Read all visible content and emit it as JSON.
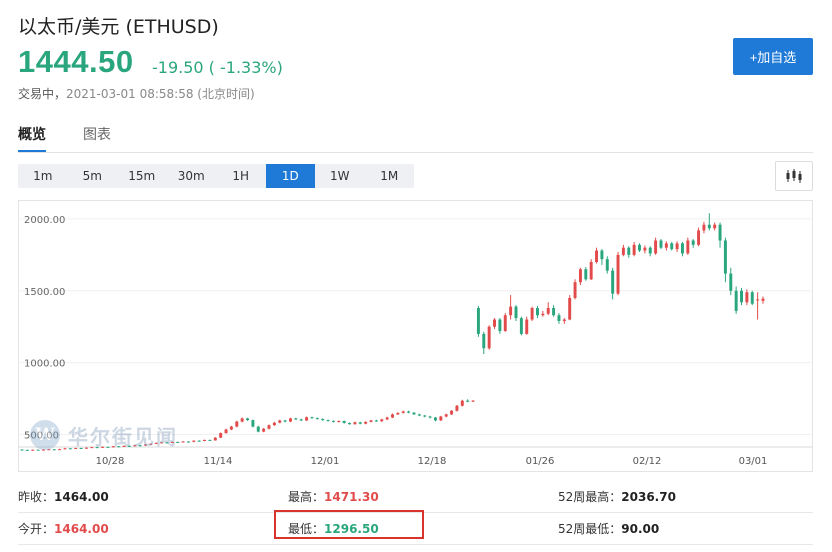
{
  "header": {
    "title": "以太币/美元  (ETHUSD)",
    "price": "1444.50",
    "change": "-19.50 ( -1.33%)",
    "status": "交易中，",
    "timestamp": "2021-03-01 08:58:58 (北京时间)",
    "add_button": "+加自选"
  },
  "tabs": [
    {
      "label": "概览",
      "active": true
    },
    {
      "label": "图表",
      "active": false
    }
  ],
  "periods": [
    {
      "label": "1m",
      "active": false
    },
    {
      "label": "5m",
      "active": false
    },
    {
      "label": "15m",
      "active": false
    },
    {
      "label": "30m",
      "active": false
    },
    {
      "label": "1H",
      "active": false
    },
    {
      "label": "1D",
      "active": true
    },
    {
      "label": "1W",
      "active": false
    },
    {
      "label": "1M",
      "active": false
    }
  ],
  "watermark": "华尔街见闻",
  "colors": {
    "up": "#e24b4b",
    "down": "#2aa67e",
    "accent": "#1e7ad6"
  },
  "icons": {
    "chart_type": "candlestick-icon"
  },
  "chart_data": {
    "type": "candlestick",
    "ylim": [
      420,
      2090
    ],
    "yticks": [
      {
        "v": 2000,
        "label": "2000.00"
      },
      {
        "v": 1500,
        "label": "1500.00"
      },
      {
        "v": 1000,
        "label": "1000.00"
      },
      {
        "v": 500,
        "label": "500.00"
      }
    ],
    "xticks": [
      "10/28",
      "11/14",
      "12/01",
      "12/18",
      "01/26",
      "02/12",
      "03/01"
    ],
    "candles": [
      [
        395,
        393,
        397,
        391
      ],
      [
        393,
        390,
        395,
        388
      ],
      [
        390,
        394,
        396,
        388
      ],
      [
        394,
        392,
        396,
        390
      ],
      [
        392,
        395,
        398,
        390
      ],
      [
        395,
        397,
        399,
        393
      ],
      [
        397,
        394,
        399,
        392
      ],
      [
        394,
        398,
        401,
        392
      ],
      [
        398,
        404,
        407,
        396
      ],
      [
        404,
        401,
        406,
        399
      ],
      [
        401,
        406,
        408,
        399
      ],
      [
        406,
        403,
        408,
        401
      ],
      [
        403,
        408,
        411,
        401
      ],
      [
        408,
        412,
        414,
        406
      ],
      [
        412,
        409,
        414,
        407
      ],
      [
        409,
        414,
        417,
        407
      ],
      [
        414,
        411,
        416,
        409
      ],
      [
        411,
        418,
        421,
        409
      ],
      [
        418,
        415,
        420,
        413
      ],
      [
        415,
        421,
        424,
        413
      ],
      [
        421,
        419,
        424,
        417
      ],
      [
        419,
        425,
        428,
        417
      ],
      [
        425,
        423,
        428,
        420
      ],
      [
        423,
        430,
        433,
        421
      ],
      [
        430,
        436,
        438,
        428
      ],
      [
        436,
        442,
        444,
        433
      ],
      [
        442,
        445,
        447,
        439
      ],
      [
        445,
        442,
        447,
        440
      ],
      [
        442,
        448,
        451,
        440
      ],
      [
        448,
        446,
        451,
        443
      ],
      [
        446,
        451,
        454,
        444
      ],
      [
        451,
        449,
        454,
        447
      ],
      [
        449,
        457,
        460,
        446
      ],
      [
        457,
        455,
        460,
        452
      ],
      [
        455,
        462,
        465,
        453
      ],
      [
        462,
        459,
        465,
        457
      ],
      [
        459,
        478,
        482,
        457
      ],
      [
        478,
        510,
        514,
        475
      ],
      [
        510,
        535,
        540,
        506
      ],
      [
        535,
        555,
        560,
        530
      ],
      [
        555,
        590,
        596,
        550
      ],
      [
        590,
        612,
        618,
        585
      ],
      [
        612,
        600,
        616,
        595
      ],
      [
        600,
        555,
        604,
        550
      ],
      [
        555,
        520,
        560,
        515
      ],
      [
        520,
        540,
        545,
        516
      ],
      [
        540,
        565,
        570,
        536
      ],
      [
        565,
        582,
        588,
        560
      ],
      [
        582,
        598,
        603,
        578
      ],
      [
        598,
        590,
        602,
        585
      ],
      [
        590,
        612,
        617,
        586
      ],
      [
        612,
        605,
        616,
        600
      ],
      [
        605,
        598,
        610,
        594
      ],
      [
        598,
        620,
        625,
        594
      ],
      [
        620,
        614,
        624,
        610
      ],
      [
        614,
        608,
        618,
        604
      ],
      [
        608,
        600,
        612,
        596
      ],
      [
        600,
        595,
        604,
        591
      ],
      [
        595,
        588,
        598,
        584
      ],
      [
        588,
        594,
        598,
        584
      ],
      [
        594,
        580,
        597,
        576
      ],
      [
        580,
        572,
        584,
        568
      ],
      [
        572,
        585,
        590,
        568
      ],
      [
        585,
        575,
        588,
        571
      ],
      [
        575,
        588,
        592,
        571
      ],
      [
        588,
        598,
        602,
        584
      ],
      [
        598,
        592,
        602,
        588
      ],
      [
        592,
        605,
        610,
        588
      ],
      [
        605,
        618,
        624,
        600
      ],
      [
        618,
        640,
        646,
        614
      ],
      [
        640,
        650,
        655,
        636
      ],
      [
        650,
        660,
        666,
        646
      ],
      [
        660,
        652,
        666,
        648
      ],
      [
        652,
        640,
        656,
        636
      ],
      [
        640,
        632,
        645,
        628
      ],
      [
        632,
        625,
        636,
        620
      ],
      [
        625,
        618,
        630,
        612
      ],
      [
        618,
        598,
        622,
        592
      ],
      [
        598,
        625,
        630,
        594
      ],
      [
        625,
        640,
        645,
        620
      ],
      [
        640,
        665,
        670,
        636
      ],
      [
        665,
        700,
        706,
        660
      ],
      [
        700,
        735,
        742,
        695
      ],
      [
        735,
        732,
        745,
        725
      ],
      [
        732,
        735,
        740,
        728
      ],
      [
        1380,
        1200,
        1395,
        1180
      ],
      [
        1200,
        1100,
        1215,
        1060
      ],
      [
        1100,
        1250,
        1260,
        1090
      ],
      [
        1250,
        1300,
        1310,
        1235
      ],
      [
        1300,
        1220,
        1310,
        1200
      ],
      [
        1220,
        1330,
        1345,
        1215
      ],
      [
        1330,
        1390,
        1470,
        1300
      ],
      [
        1390,
        1310,
        1400,
        1290
      ],
      [
        1310,
        1200,
        1320,
        1190
      ],
      [
        1200,
        1300,
        1320,
        1195
      ],
      [
        1300,
        1380,
        1390,
        1290
      ],
      [
        1380,
        1330,
        1395,
        1310
      ],
      [
        1330,
        1340,
        1360,
        1320
      ],
      [
        1340,
        1380,
        1420,
        1330
      ],
      [
        1380,
        1330,
        1400,
        1320
      ],
      [
        1330,
        1290,
        1345,
        1270
      ],
      [
        1290,
        1300,
        1310,
        1270
      ],
      [
        1300,
        1450,
        1470,
        1295
      ],
      [
        1450,
        1560,
        1580,
        1440
      ],
      [
        1560,
        1650,
        1660,
        1540
      ],
      [
        1650,
        1580,
        1665,
        1570
      ],
      [
        1580,
        1700,
        1720,
        1575
      ],
      [
        1700,
        1780,
        1800,
        1690
      ],
      [
        1780,
        1720,
        1790,
        1680
      ],
      [
        1720,
        1640,
        1740,
        1620
      ],
      [
        1640,
        1480,
        1660,
        1440
      ],
      [
        1480,
        1750,
        1770,
        1470
      ],
      [
        1750,
        1800,
        1820,
        1740
      ],
      [
        1800,
        1750,
        1810,
        1730
      ],
      [
        1750,
        1820,
        1840,
        1740
      ],
      [
        1820,
        1780,
        1830,
        1770
      ],
      [
        1780,
        1800,
        1815,
        1760
      ],
      [
        1800,
        1760,
        1810,
        1740
      ],
      [
        1760,
        1850,
        1870,
        1750
      ],
      [
        1850,
        1800,
        1860,
        1790
      ],
      [
        1800,
        1830,
        1845,
        1780
      ],
      [
        1830,
        1790,
        1840,
        1780
      ],
      [
        1790,
        1830,
        1845,
        1770
      ],
      [
        1830,
        1760,
        1840,
        1740
      ],
      [
        1760,
        1850,
        1870,
        1750
      ],
      [
        1850,
        1820,
        1860,
        1800
      ],
      [
        1820,
        1920,
        1940,
        1810
      ],
      [
        1920,
        1960,
        1980,
        1900
      ],
      [
        1960,
        1935,
        2040,
        1920
      ],
      [
        1935,
        1960,
        1975,
        1920
      ],
      [
        1960,
        1850,
        1975,
        1800
      ],
      [
        1850,
        1620,
        1870,
        1560
      ],
      [
        1620,
        1500,
        1660,
        1470
      ],
      [
        1500,
        1360,
        1530,
        1340
      ],
      [
        1500,
        1420,
        1520,
        1400
      ],
      [
        1420,
        1490,
        1510,
        1400
      ],
      [
        1490,
        1410,
        1500,
        1400
      ],
      [
        1440,
        1440,
        1490,
        1300
      ],
      [
        1430,
        1445,
        1460,
        1410
      ]
    ]
  },
  "stats": {
    "prev_close_label": "昨收：",
    "prev_close": "1464.00",
    "high_label": "最高：",
    "high": "1471.30",
    "high52_label": "52周最高：",
    "high52": "2036.70",
    "open_label": "今开：",
    "open": "1464.00",
    "low_label": "最低：",
    "low": "1296.50",
    "low52_label": "52周最低：",
    "low52": "90.00"
  }
}
